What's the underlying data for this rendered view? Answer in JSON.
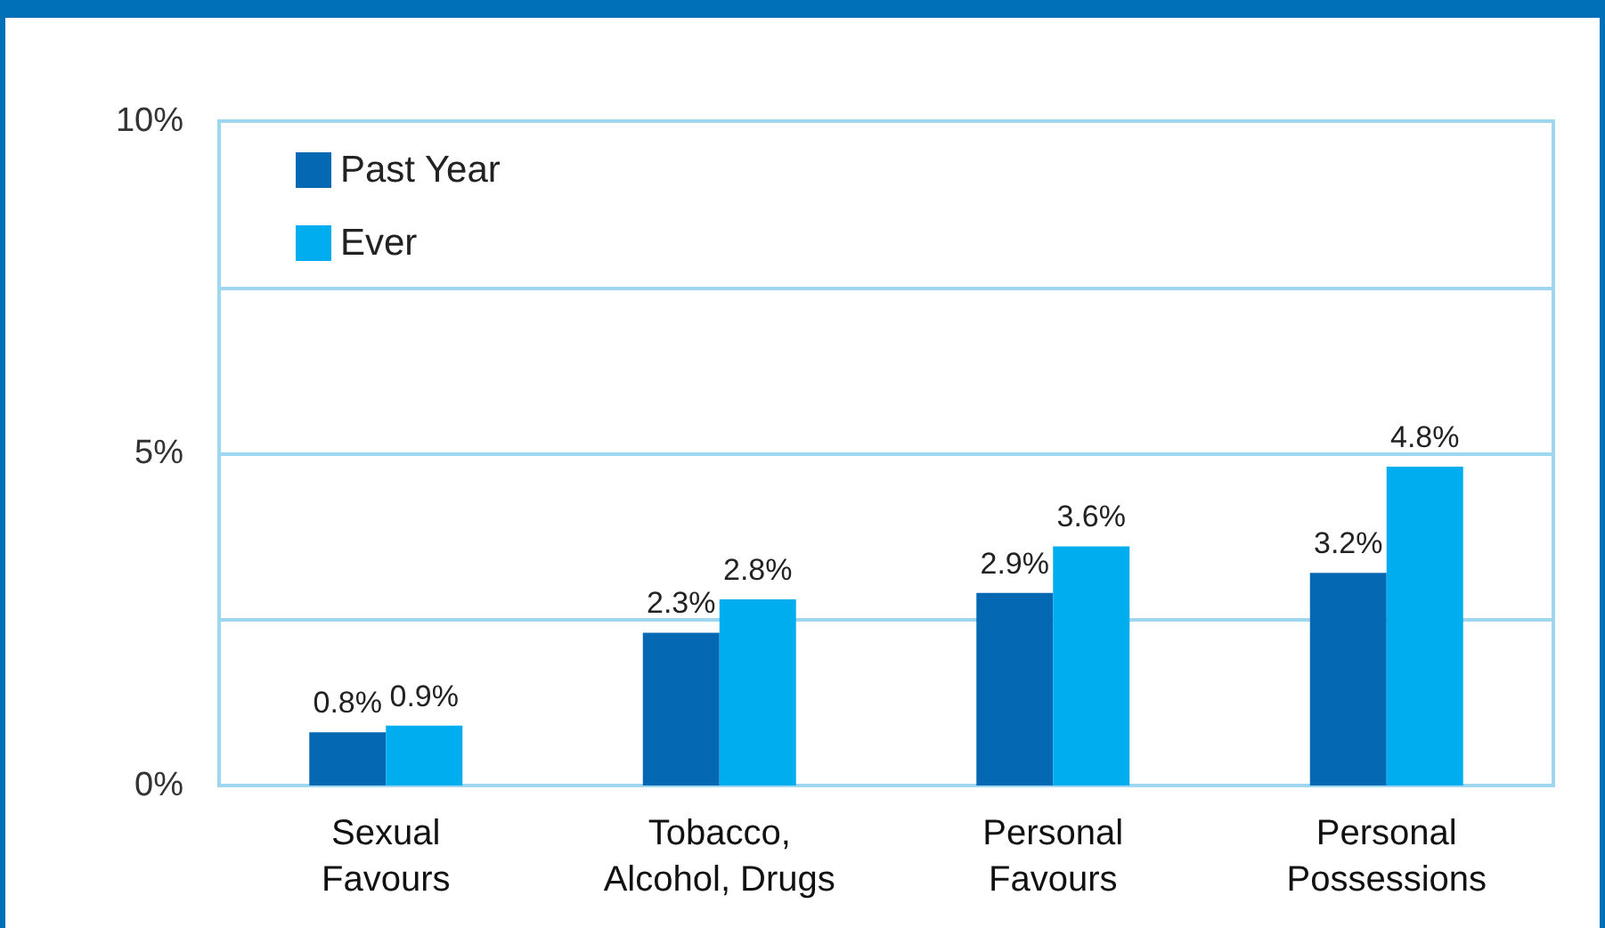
{
  "chart_data": {
    "type": "bar",
    "categories": [
      "Sexual\nFavours",
      "Tobacco,\nAlcohol, Drugs",
      "Personal\nFavours",
      "Personal\nPossessions"
    ],
    "series": [
      {
        "name": "Past Year",
        "color": "#0568b3",
        "values": [
          0.8,
          2.3,
          2.9,
          3.2
        ],
        "value_labels": [
          "0.8%",
          "2.3%",
          "2.9%",
          "3.2%"
        ]
      },
      {
        "name": "Ever",
        "color": "#00aeef",
        "values": [
          0.9,
          2.8,
          3.6,
          4.8
        ],
        "value_labels": [
          "0.9%",
          "2.8%",
          "3.6%",
          "4.8%"
        ]
      }
    ],
    "ylim": [
      0,
      10
    ],
    "yticks": [
      {
        "value": 0,
        "label": "0%"
      },
      {
        "value": 2.5,
        "label": null
      },
      {
        "value": 5,
        "label": "5%"
      },
      {
        "value": 7.5,
        "label": null
      },
      {
        "value": 10,
        "label": "10%"
      }
    ],
    "grid": "y",
    "legend": "top left"
  }
}
